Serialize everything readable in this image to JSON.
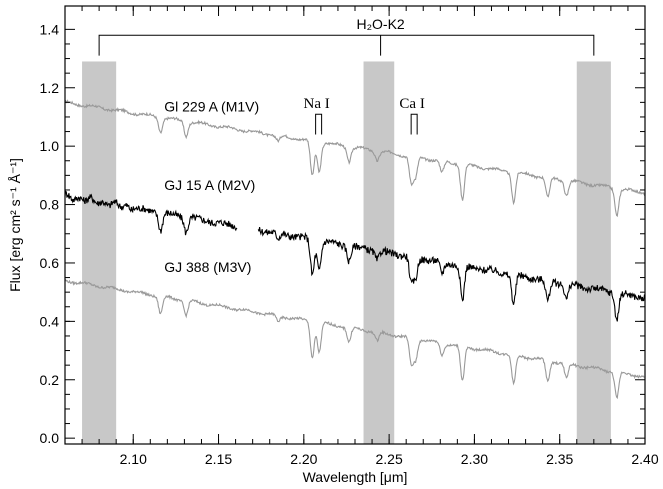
{
  "chart_data": {
    "type": "line",
    "xlabel": "Wavelength [μm]",
    "ylabel": "Flux [erg cm² s⁻¹ Å⁻¹]",
    "xlim": [
      2.06,
      2.4
    ],
    "ylim": [
      -0.02,
      1.48
    ],
    "xticks": [
      "2.10",
      "2.15",
      "2.20",
      "2.25",
      "2.30",
      "2.35",
      "2.40"
    ],
    "yticks": [
      "0.0",
      "0.2",
      "0.4",
      "0.6",
      "0.8",
      "1.0",
      "1.2",
      "1.4"
    ],
    "grid": false,
    "bands": [
      [
        2.07,
        2.09
      ],
      [
        2.235,
        2.253
      ],
      [
        2.36,
        2.38
      ]
    ],
    "band_color": "#c8c8c8",
    "bracket_label": "H₂O-K2",
    "line_labels": [
      {
        "text": "Na I",
        "x": 2.2075,
        "y": 1.13
      },
      {
        "text": "Ca I",
        "x": 2.2635,
        "y": 1.13
      }
    ],
    "series": [
      {
        "name": "Gl 229 A (M1V)",
        "color": "#999999",
        "label_pos": {
          "x": 2.1,
          "y": 1.14
        },
        "start": 1.15,
        "end": 0.84,
        "gaps": [],
        "noise": 0.004,
        "absorption": [
          [
            2.116,
            0.05
          ],
          [
            2.131,
            0.05
          ],
          [
            2.185,
            0.02
          ],
          [
            2.205,
            0.12
          ],
          [
            2.209,
            0.1
          ],
          [
            2.2265,
            0.05
          ],
          [
            2.243,
            0.03
          ],
          [
            2.263,
            0.09
          ],
          [
            2.2655,
            0.07
          ],
          [
            2.281,
            0.04
          ],
          [
            2.293,
            0.12
          ],
          [
            2.323,
            0.1
          ],
          [
            2.343,
            0.07
          ],
          [
            2.354,
            0.05
          ],
          [
            2.3835,
            0.09
          ]
        ]
      },
      {
        "name": "GJ 15 A (M2V)",
        "color": "#000000",
        "label_pos": {
          "x": 2.1,
          "y": 0.87
        },
        "start": 0.83,
        "end": 0.48,
        "gaps": [
          [
            2.161,
            2.173
          ]
        ],
        "noise": 0.012,
        "absorption": [
          [
            2.116,
            0.06
          ],
          [
            2.131,
            0.05
          ],
          [
            2.185,
            0.02
          ],
          [
            2.205,
            0.12
          ],
          [
            2.209,
            0.1
          ],
          [
            2.2265,
            0.05
          ],
          [
            2.243,
            0.03
          ],
          [
            2.263,
            0.09
          ],
          [
            2.2655,
            0.07
          ],
          [
            2.281,
            0.04
          ],
          [
            2.293,
            0.12
          ],
          [
            2.323,
            0.1
          ],
          [
            2.343,
            0.07
          ],
          [
            2.354,
            0.05
          ],
          [
            2.3835,
            0.09
          ]
        ]
      },
      {
        "name": "GJ 388 (M3V)",
        "color": "#999999",
        "label_pos": {
          "x": 2.1,
          "y": 0.59
        },
        "start": 0.54,
        "end": 0.21,
        "gaps": [],
        "noise": 0.004,
        "absorption": [
          [
            2.116,
            0.06
          ],
          [
            2.131,
            0.05
          ],
          [
            2.185,
            0.02
          ],
          [
            2.205,
            0.12
          ],
          [
            2.209,
            0.1
          ],
          [
            2.2265,
            0.05
          ],
          [
            2.243,
            0.03
          ],
          [
            2.263,
            0.09
          ],
          [
            2.2655,
            0.07
          ],
          [
            2.281,
            0.04
          ],
          [
            2.293,
            0.12
          ],
          [
            2.323,
            0.1
          ],
          [
            2.343,
            0.07
          ],
          [
            2.354,
            0.05
          ],
          [
            2.3835,
            0.09
          ]
        ]
      }
    ]
  }
}
